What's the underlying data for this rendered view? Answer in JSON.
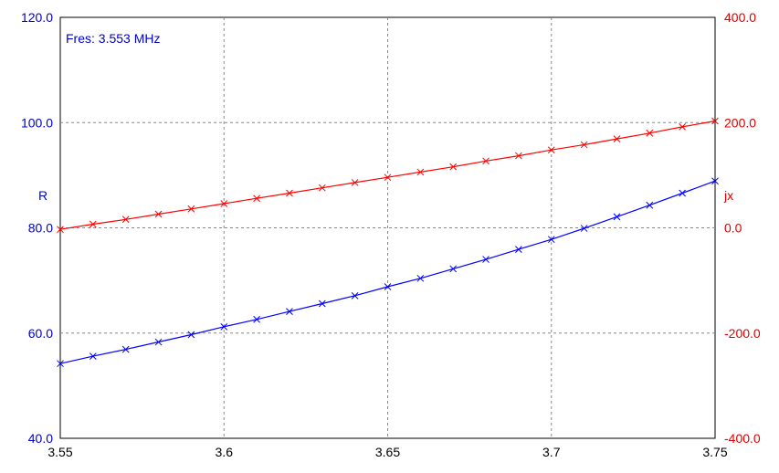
{
  "chart_data": {
    "type": "line",
    "annotation": "Fres: 3.553 MHz",
    "xlim": [
      3.55,
      3.75
    ],
    "x_ticks": [
      "3.55",
      "3.6",
      "3.65",
      "3.7",
      "3.75"
    ],
    "y_left": {
      "label": "R",
      "lim": [
        40.0,
        120.0
      ],
      "ticks": [
        "40.0",
        "60.0",
        "80.0",
        "100.0",
        "120.0"
      ],
      "color": "#0000cc"
    },
    "y_right": {
      "label": "jx",
      "lim": [
        -400.0,
        400.0
      ],
      "ticks": [
        "-400.0",
        "-200.0",
        "0.0",
        "200.0",
        "400.0"
      ],
      "color": "#e00000"
    },
    "grid": true,
    "x": [
      3.55,
      3.56,
      3.57,
      3.58,
      3.59,
      3.6,
      3.61,
      3.62,
      3.63,
      3.64,
      3.65,
      3.66,
      3.67,
      3.68,
      3.69,
      3.7,
      3.71,
      3.72,
      3.73,
      3.74,
      3.75
    ],
    "series": [
      {
        "axis": "left",
        "color": "#0000ff",
        "values": [
          54.2,
          55.6,
          56.9,
          58.3,
          59.7,
          61.2,
          62.6,
          64.1,
          65.6,
          67.1,
          68.8,
          70.4,
          72.2,
          74.0,
          75.9,
          77.8,
          79.9,
          82.1,
          84.3,
          86.6,
          88.9
        ]
      },
      {
        "axis": "right",
        "color": "#ff0000",
        "values": [
          -3,
          7,
          16,
          26,
          36,
          46,
          56,
          66,
          76,
          86,
          96,
          106,
          116,
          127,
          137,
          148,
          158,
          169,
          180,
          192,
          203
        ]
      }
    ]
  }
}
